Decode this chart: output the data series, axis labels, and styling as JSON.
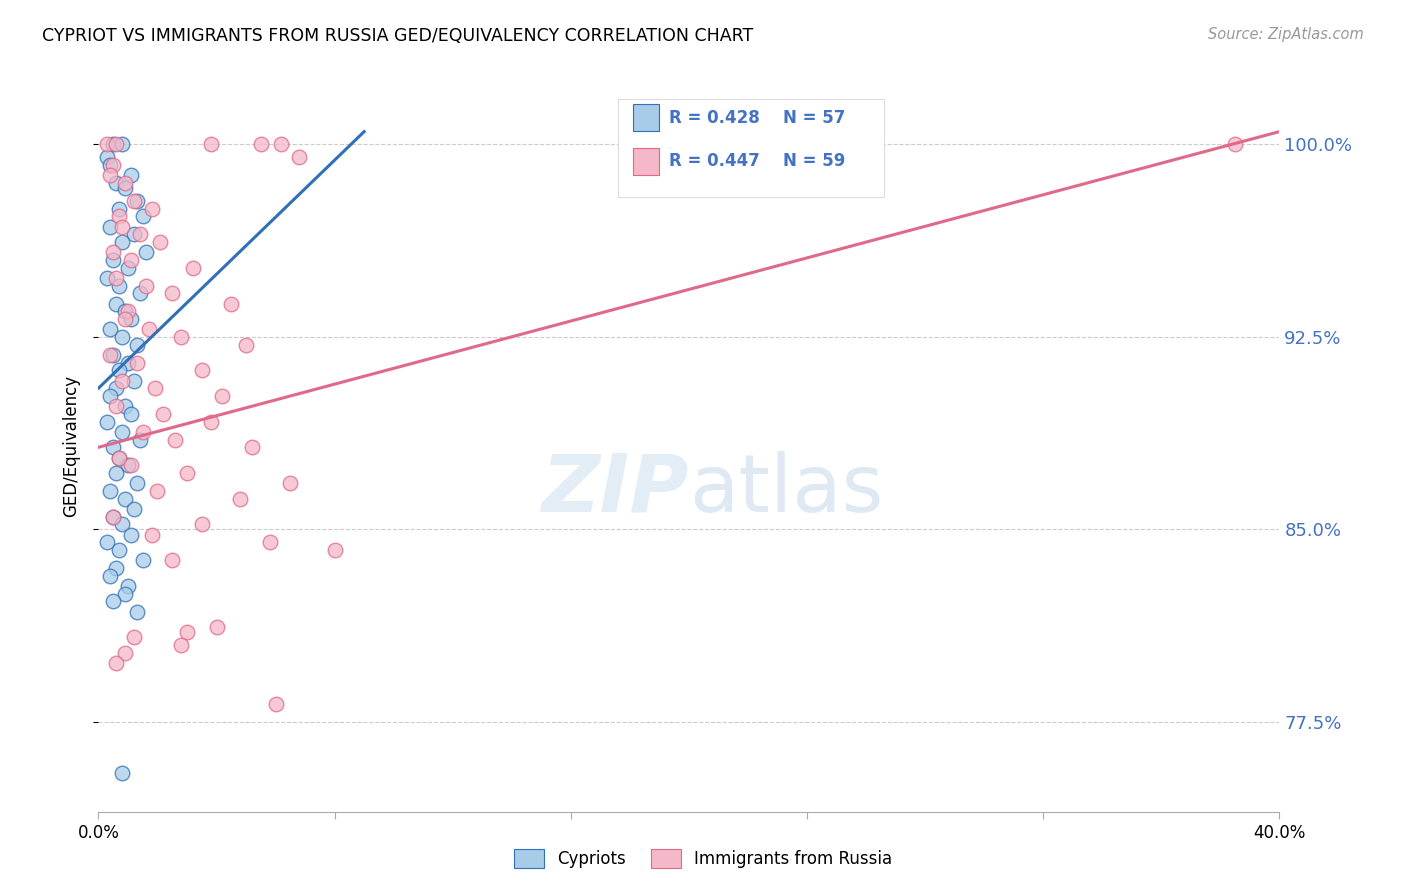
{
  "title": "CYPRIOT VS IMMIGRANTS FROM RUSSIA GED/EQUIVALENCY CORRELATION CHART",
  "source": "Source: ZipAtlas.com",
  "ylabel": "GED/Equivalency",
  "yticks": [
    100.0,
    92.5,
    85.0,
    77.5
  ],
  "ytick_labels": [
    "100.0%",
    "92.5%",
    "85.0%",
    "77.5%"
  ],
  "legend_R_blue": "R = 0.428",
  "legend_N_blue": "N = 57",
  "legend_R_pink": "R = 0.447",
  "legend_N_pink": "N = 59",
  "legend_label_blue": "Cypriots",
  "legend_label_pink": "Immigrants from Russia",
  "blue_color": "#a8cce8",
  "pink_color": "#f4b8c8",
  "blue_line_color": "#3070b8",
  "pink_line_color": "#e06888",
  "watermark_zip": "ZIP",
  "watermark_atlas": "atlas",
  "blue_dots": [
    [
      0.5,
      100.0
    ],
    [
      0.8,
      100.0
    ],
    [
      0.3,
      99.5
    ],
    [
      0.4,
      99.2
    ],
    [
      1.1,
      98.8
    ],
    [
      0.6,
      98.5
    ],
    [
      0.9,
      98.3
    ],
    [
      1.3,
      97.8
    ],
    [
      0.7,
      97.5
    ],
    [
      1.5,
      97.2
    ],
    [
      0.4,
      96.8
    ],
    [
      1.2,
      96.5
    ],
    [
      0.8,
      96.2
    ],
    [
      1.6,
      95.8
    ],
    [
      0.5,
      95.5
    ],
    [
      1.0,
      95.2
    ],
    [
      0.3,
      94.8
    ],
    [
      0.7,
      94.5
    ],
    [
      1.4,
      94.2
    ],
    [
      0.6,
      93.8
    ],
    [
      0.9,
      93.5
    ],
    [
      1.1,
      93.2
    ],
    [
      0.4,
      92.8
    ],
    [
      0.8,
      92.5
    ],
    [
      1.3,
      92.2
    ],
    [
      0.5,
      91.8
    ],
    [
      1.0,
      91.5
    ],
    [
      0.7,
      91.2
    ],
    [
      1.2,
      90.8
    ],
    [
      0.6,
      90.5
    ],
    [
      0.4,
      90.2
    ],
    [
      0.9,
      89.8
    ],
    [
      1.1,
      89.5
    ],
    [
      0.3,
      89.2
    ],
    [
      0.8,
      88.8
    ],
    [
      1.4,
      88.5
    ],
    [
      0.5,
      88.2
    ],
    [
      0.7,
      87.8
    ],
    [
      1.0,
      87.5
    ],
    [
      0.6,
      87.2
    ],
    [
      1.3,
      86.8
    ],
    [
      0.4,
      86.5
    ],
    [
      0.9,
      86.2
    ],
    [
      1.2,
      85.8
    ],
    [
      0.5,
      85.5
    ],
    [
      0.8,
      85.2
    ],
    [
      1.1,
      84.8
    ],
    [
      0.3,
      84.5
    ],
    [
      0.7,
      84.2
    ],
    [
      1.5,
      83.8
    ],
    [
      0.6,
      83.5
    ],
    [
      0.4,
      83.2
    ],
    [
      1.0,
      82.8
    ],
    [
      0.9,
      82.5
    ],
    [
      0.5,
      82.2
    ],
    [
      0.8,
      75.5
    ],
    [
      1.3,
      81.8
    ]
  ],
  "pink_dots": [
    [
      0.3,
      100.0
    ],
    [
      0.6,
      100.0
    ],
    [
      3.8,
      100.0
    ],
    [
      5.5,
      100.0
    ],
    [
      6.2,
      100.0
    ],
    [
      6.8,
      99.5
    ],
    [
      0.5,
      99.2
    ],
    [
      0.4,
      98.8
    ],
    [
      0.9,
      98.5
    ],
    [
      1.2,
      97.8
    ],
    [
      1.8,
      97.5
    ],
    [
      0.7,
      97.2
    ],
    [
      0.8,
      96.8
    ],
    [
      1.4,
      96.5
    ],
    [
      2.1,
      96.2
    ],
    [
      0.5,
      95.8
    ],
    [
      1.1,
      95.5
    ],
    [
      3.2,
      95.2
    ],
    [
      0.6,
      94.8
    ],
    [
      1.6,
      94.5
    ],
    [
      2.5,
      94.2
    ],
    [
      4.5,
      93.8
    ],
    [
      1.0,
      93.5
    ],
    [
      0.9,
      93.2
    ],
    [
      1.7,
      92.8
    ],
    [
      2.8,
      92.5
    ],
    [
      5.0,
      92.2
    ],
    [
      0.4,
      91.8
    ],
    [
      1.3,
      91.5
    ],
    [
      3.5,
      91.2
    ],
    [
      0.8,
      90.8
    ],
    [
      1.9,
      90.5
    ],
    [
      4.2,
      90.2
    ],
    [
      0.6,
      89.8
    ],
    [
      2.2,
      89.5
    ],
    [
      3.8,
      89.2
    ],
    [
      1.5,
      88.8
    ],
    [
      2.6,
      88.5
    ],
    [
      5.2,
      88.2
    ],
    [
      0.7,
      87.8
    ],
    [
      1.1,
      87.5
    ],
    [
      3.0,
      87.2
    ],
    [
      6.5,
      86.8
    ],
    [
      2.0,
      86.5
    ],
    [
      4.8,
      86.2
    ],
    [
      0.5,
      85.5
    ],
    [
      3.5,
      85.2
    ],
    [
      1.8,
      84.8
    ],
    [
      5.8,
      84.5
    ],
    [
      8.0,
      84.2
    ],
    [
      2.5,
      83.8
    ],
    [
      3.0,
      81.0
    ],
    [
      4.0,
      81.2
    ],
    [
      1.2,
      80.8
    ],
    [
      2.8,
      80.5
    ],
    [
      0.9,
      80.2
    ],
    [
      6.0,
      78.2
    ],
    [
      38.5,
      100.0
    ],
    [
      0.6,
      79.8
    ]
  ],
  "blue_line": [
    [
      0.0,
      90.5
    ],
    [
      9.0,
      100.5
    ]
  ],
  "pink_line": [
    [
      0.0,
      88.2
    ],
    [
      40.0,
      100.5
    ]
  ],
  "xmin": 0.0,
  "xmax": 40.0,
  "ymin": 74.0,
  "ymax": 102.5
}
